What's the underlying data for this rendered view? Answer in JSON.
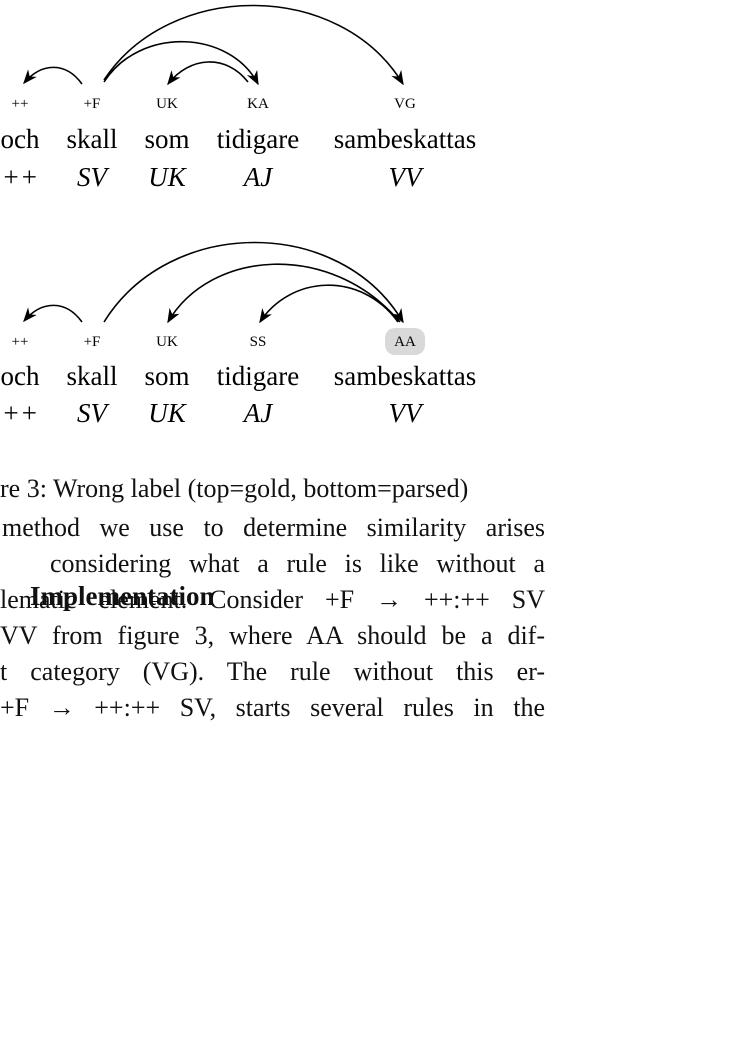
{
  "figures": [
    {
      "labels": [
        "++",
        "+F",
        "UK",
        "KA",
        "VG"
      ],
      "words": [
        "och",
        "skall",
        "som",
        "tidigare",
        "sambeskattas"
      ],
      "tags": [
        "++",
        "SV",
        "UK",
        "AJ",
        "VV"
      ]
    },
    {
      "labels": [
        "++",
        "+F",
        "UK",
        "SS",
        "AA"
      ],
      "words": [
        "och",
        "skall",
        "som",
        "tidigare",
        "sambeskattas"
      ],
      "tags": [
        "++",
        "SV",
        "UK",
        "AJ",
        "VV"
      ]
    }
  ],
  "caption": "re 3: Wrong label (top=gold, bottom=parsed)",
  "section": {
    "title": "Implementation",
    "lines": [
      "method we use to determine similarity arises",
      "considering what a rule is like without a",
      "lematic element. Consider +F → ++:++ SV",
      "VV from figure 3, where AA should be a dif-",
      "t category (VG). The rule without this er-",
      "+F → ++:++ SV, starts several rules in the"
    ]
  }
}
